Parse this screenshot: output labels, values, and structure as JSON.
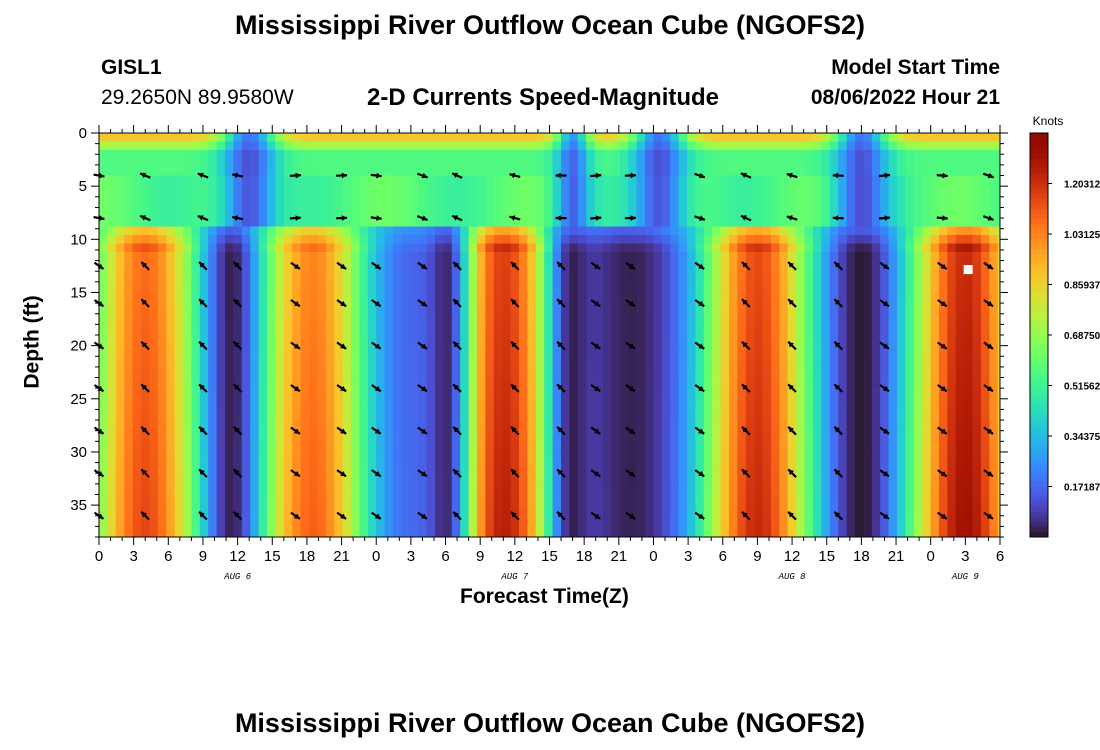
{
  "page": {
    "title": "Mississippi River Outflow Ocean Cube (NGOFS2)",
    "title_repeat": "Mississippi River Outflow Ocean Cube (NGOFS2)"
  },
  "station": {
    "id": "GISL1",
    "coords": "29.2650N  89.9580W"
  },
  "model_start": {
    "label": "Model Start Time",
    "value": "08/06/2022 Hour 21"
  },
  "chart_data": {
    "type": "heatmap",
    "title": "2-D Currents Speed-Magnitude",
    "xlabel": "Forecast Time(Z)",
    "ylabel": "Depth (ft)",
    "x_unit": "hours since Aug 6 00Z",
    "x_range": [
      0,
      78
    ],
    "x_ticks": [
      0,
      3,
      6,
      9,
      12,
      15,
      18,
      21,
      24,
      27,
      30,
      33,
      36,
      39,
      42,
      45,
      48,
      51,
      54,
      57,
      60,
      63,
      66,
      69,
      72,
      75,
      78
    ],
    "x_tick_labels": [
      "0",
      "3",
      "6",
      "9",
      "12",
      "15",
      "18",
      "21",
      "0",
      "3",
      "6",
      "9",
      "12",
      "15",
      "18",
      "21",
      "0",
      "3",
      "6",
      "9",
      "12",
      "15",
      "18",
      "21",
      "0",
      "3",
      "6"
    ],
    "date_labels": [
      {
        "hour": 12,
        "text": "AUG 6"
      },
      {
        "hour": 36,
        "text": "AUG 7"
      },
      {
        "hour": 60,
        "text": "AUG 8"
      },
      {
        "hour": 75,
        "text": "AUG 9"
      }
    ],
    "y_range": [
      0,
      38
    ],
    "y_ticks": [
      0,
      5,
      10,
      15,
      20,
      25,
      30,
      35
    ],
    "y_tick_labels": [
      "0",
      "5",
      "10",
      "15",
      "20",
      "25",
      "30",
      "35"
    ],
    "colorbar": {
      "label": "Knots",
      "min": 0.0,
      "max": 1.375,
      "tick_values": [
        1.20312,
        1.03125,
        0.85937,
        0.6875,
        0.51562,
        0.34375,
        0.17187
      ],
      "tick_labels": [
        "1.20312",
        "1.03125",
        "0.85937",
        "0.68750",
        "0.51562",
        "0.34375",
        "0.17187"
      ]
    },
    "speed_peaks_deep": [
      {
        "hour": 4,
        "knots": 1.15
      },
      {
        "hour": 18.5,
        "knots": 1.1
      },
      {
        "hour": 35,
        "knots": 1.25
      },
      {
        "hour": 57,
        "knots": 1.22
      },
      {
        "hour": 75,
        "knots": 1.3
      }
    ],
    "slack_hours": [
      11.5,
      30,
      41,
      66
    ],
    "slack_near_surface_hours": [
      13,
      48.5,
      66
    ],
    "vector_columns_hours": [
      0,
      4,
      9,
      12,
      17,
      21,
      24,
      28,
      31,
      36,
      40,
      43,
      46,
      52,
      56,
      60,
      64,
      68,
      73,
      77
    ],
    "vector_rows_ft": [
      4,
      8,
      12.5,
      16,
      20,
      24,
      28,
      32,
      36
    ],
    "marker": {
      "hour": 75.2,
      "depth_ft": 12.8
    }
  }
}
